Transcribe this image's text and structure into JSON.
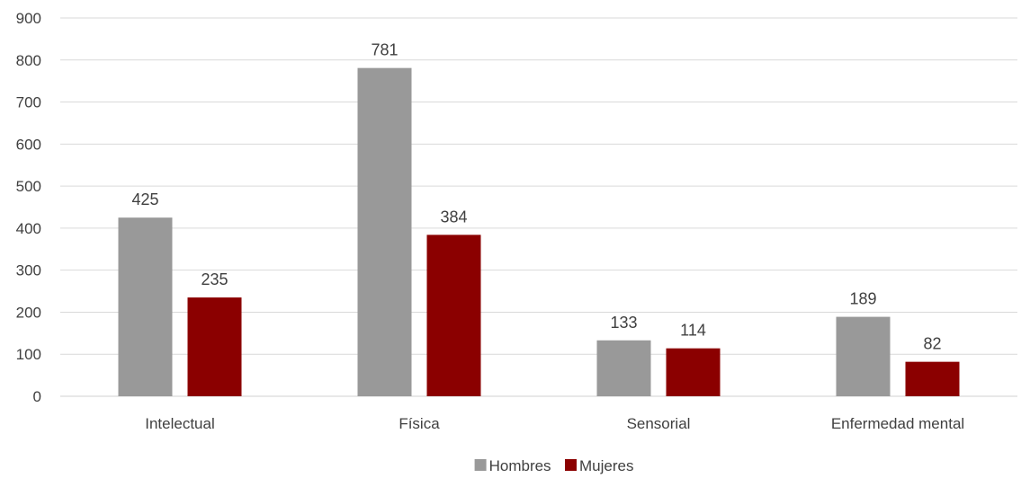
{
  "chart_data": {
    "type": "bar",
    "title": "",
    "xlabel": "",
    "ylabel": "",
    "categories": [
      "Intelectual",
      "Física",
      "Sensorial",
      "Enfermedad mental"
    ],
    "series": [
      {
        "name": "Hombres",
        "values": [
          425,
          781,
          133,
          189
        ],
        "color": "#999999"
      },
      {
        "name": "Mujeres",
        "values": [
          235,
          384,
          114,
          82
        ],
        "color": "#8B0000"
      }
    ],
    "ylim": [
      0,
      900
    ],
    "yticks": [
      0,
      100,
      200,
      300,
      400,
      500,
      600,
      700,
      800,
      900
    ],
    "grid": true,
    "legend_position": "bottom",
    "data_labels": true
  }
}
